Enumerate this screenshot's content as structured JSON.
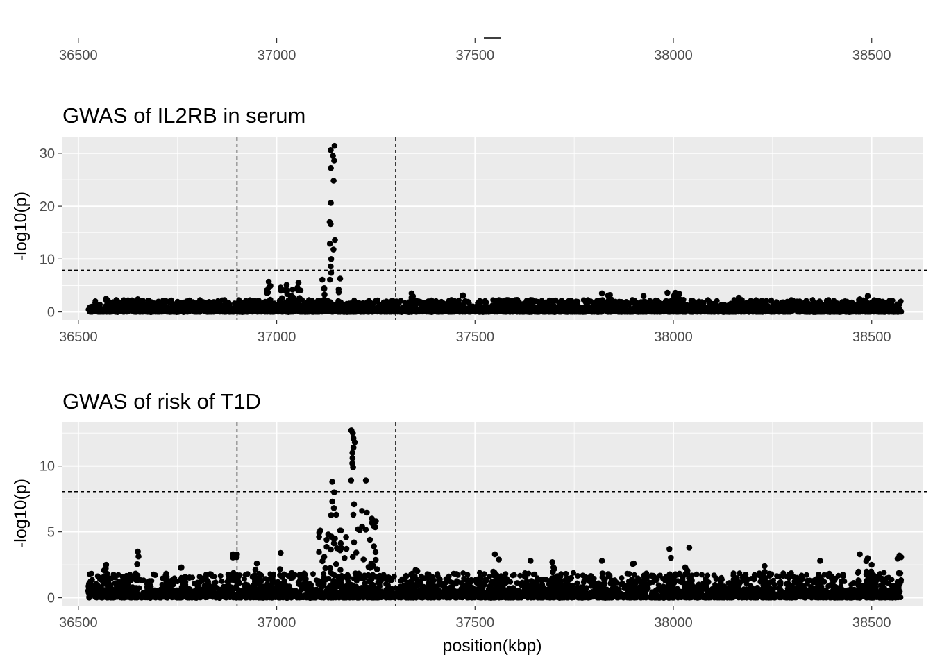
{
  "chart_data": [
    {
      "type": "axis-strip",
      "x": {
        "ticks": [
          36500,
          37000,
          37500,
          38000,
          38500
        ],
        "range": [
          36460,
          38630
        ]
      }
    },
    {
      "type": "scatter",
      "title": "GWAS of IL2RB in serum",
      "ylabel": "-log10(p)",
      "xlabel": "",
      "xlim": [
        36460,
        38630
      ],
      "ylim": [
        -1.5,
        33
      ],
      "x_ticks": [
        36500,
        37000,
        37500,
        38000,
        38500
      ],
      "y_ticks": [
        0,
        10,
        20,
        30
      ],
      "grid": true,
      "vlines": [
        36900,
        37300
      ],
      "hline": 7.9,
      "peak": {
        "x": 37140,
        "values": [
          31.4,
          30.6,
          29.5,
          28.6,
          27.2,
          24.8,
          20.6,
          17.0,
          16.6,
          13.6,
          12.9,
          11.8,
          10.0,
          8.6,
          7.4,
          6.1
        ]
      },
      "series": [
        {
          "values": [
            [
              36980,
              5.7
            ],
            [
              36975,
              4.1
            ],
            [
              37010,
              4.6
            ],
            [
              37025,
              5.1
            ],
            [
              37055,
              5.5
            ],
            [
              37040,
              4.2
            ],
            [
              37115,
              6.1
            ],
            [
              37160,
              6.3
            ],
            [
              37120,
              4.5
            ],
            [
              37340,
              3.5
            ],
            [
              37470,
              3.1
            ],
            [
              37820,
              3.5
            ],
            [
              37840,
              3.2
            ],
            [
              37925,
              3.0
            ],
            [
              37985,
              3.6
            ],
            [
              38005,
              3.6
            ],
            [
              38015,
              3.4
            ],
            [
              38165,
              2.7
            ],
            [
              38470,
              2.4
            ],
            [
              38490,
              3.0
            ],
            [
              38545,
              2.1
            ],
            [
              36570,
              2.5
            ],
            [
              36650,
              2.4
            ]
          ]
        }
      ],
      "baseline": {
        "from": 36525,
        "to": 38575,
        "low": 0.0,
        "high": 2.3
      }
    },
    {
      "type": "scatter",
      "title": "GWAS of risk of T1D",
      "ylabel": "-log10(p)",
      "xlabel": "position(kbp)",
      "xlim": [
        36460,
        38630
      ],
      "ylim": [
        -0.6,
        13.3
      ],
      "x_ticks": [
        36500,
        37000,
        37500,
        38000,
        38500
      ],
      "y_ticks": [
        0,
        5,
        10
      ],
      "grid": true,
      "vlines": [
        36900,
        37300
      ],
      "hline": 8.05,
      "peak": {
        "x": 37190,
        "values": [
          12.7,
          12.5,
          12.1,
          11.8,
          11.4,
          11.0,
          10.6,
          10.2,
          9.9,
          8.9,
          7.1,
          6.3
        ]
      },
      "series": [
        {
          "values": [
            [
              36650,
              3.5
            ],
            [
              36890,
              3.3
            ],
            [
              36900,
              3.3
            ],
            [
              37010,
              3.4
            ],
            [
              37140,
              8.8
            ],
            [
              37145,
              8.0
            ],
            [
              37140,
              7.3
            ],
            [
              37150,
              6.3
            ],
            [
              37160,
              5.1
            ],
            [
              37110,
              5.1
            ],
            [
              37130,
              4.8
            ],
            [
              37175,
              4.6
            ],
            [
              37205,
              5.2
            ],
            [
              37215,
              6.6
            ],
            [
              37225,
              8.9
            ],
            [
              37240,
              6.0
            ],
            [
              37250,
              5.8
            ],
            [
              37235,
              4.4
            ],
            [
              37245,
              3.9
            ],
            [
              37120,
              3.1
            ],
            [
              37160,
              3.6
            ],
            [
              37195,
              4.2
            ],
            [
              37550,
              3.3
            ],
            [
              37560,
              2.9
            ],
            [
              37640,
              2.8
            ],
            [
              37695,
              2.7
            ],
            [
              37820,
              2.8
            ],
            [
              37990,
              3.7
            ],
            [
              38040,
              3.8
            ],
            [
              38030,
              2.3
            ],
            [
              38370,
              2.8
            ],
            [
              38470,
              3.3
            ],
            [
              38490,
              3.0
            ],
            [
              38500,
              2.5
            ],
            [
              38570,
              3.2
            ],
            [
              36570,
              2.5
            ],
            [
              36760,
              2.3
            ],
            [
              36950,
              2.6
            ],
            [
              37350,
              2.1
            ],
            [
              37700,
              2.2
            ],
            [
              37900,
              2.6
            ],
            [
              38230,
              2.4
            ]
          ]
        }
      ],
      "baseline": {
        "from": 36525,
        "to": 38575,
        "low": 0.0,
        "high": 1.9
      }
    }
  ]
}
